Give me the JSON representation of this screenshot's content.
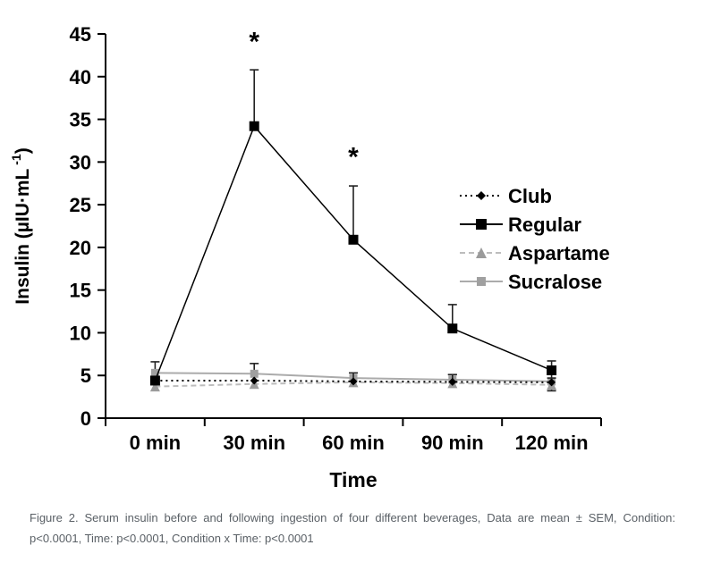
{
  "figure": {
    "caption": {
      "line1": "Figure 2. Serum insulin before and following ingestion of four different beverages, Data are mean ± SEM, Condition:",
      "line2": "p<0.0001, Time: p<0.0001, Condition x Time: p<0.0001",
      "full": "Figure 2. Serum insulin before and following ingestion of four different beverages, Data are mean ± SEM, Condition: p<0.0001, Time: p<0.0001, Condition x Time: p<0.0001",
      "color": "#5a6066"
    }
  },
  "chart_data": {
    "type": "line",
    "title": "",
    "xlabel": "Time",
    "ylabel": "Insulin (µIU·mL⁻¹)",
    "categories": [
      "0 min",
      "30 min",
      "60 min",
      "90 min",
      "120 min"
    ],
    "ylim": [
      0,
      45
    ],
    "ytick_step": 5,
    "grid": false,
    "legend_position": "right",
    "error_bar_color": "#222222",
    "axis_color": "#000000",
    "series": [
      {
        "name": "Club",
        "color": "#000000",
        "line_color": "#000000",
        "marker": "diamond",
        "line": "dotted",
        "values": [
          4.4,
          4.4,
          4.3,
          4.25,
          4.2
        ],
        "err_up": [
          0,
          0,
          0,
          0,
          0
        ],
        "err_down": [
          0,
          0,
          0,
          0,
          0
        ]
      },
      {
        "name": "Regular",
        "color": "#000000",
        "line_color": "#000000",
        "marker": "square",
        "line": "solid",
        "values": [
          4.4,
          34.2,
          20.9,
          10.5,
          5.6
        ],
        "err_up": [
          0,
          6.6,
          6.3,
          2.8,
          1.1
        ],
        "err_down": [
          0,
          0,
          0,
          0,
          0.9
        ]
      },
      {
        "name": "Aspartame",
        "color": "#9b9b9b",
        "line_color": "#bdbdbd",
        "marker": "triangle",
        "line": "dashed",
        "values": [
          3.7,
          4.0,
          4.2,
          4.1,
          3.9
        ],
        "err_up": [
          0,
          0,
          1.1,
          1.0,
          0
        ],
        "err_down": [
          0,
          0,
          0,
          0,
          0.7
        ]
      },
      {
        "name": "Sucralose",
        "color": "#a0a0a0",
        "line_color": "#ababab",
        "marker": "square",
        "line": "solid",
        "values": [
          5.3,
          5.2,
          4.7,
          4.5,
          4.3
        ],
        "err_up": [
          1.3,
          1.2,
          0,
          0.6,
          0
        ],
        "err_down": [
          0,
          0,
          0,
          0,
          0
        ]
      }
    ],
    "annotations": [
      {
        "text": "*",
        "x_index": 1,
        "y": 44.4
      },
      {
        "text": "*",
        "x_index": 2,
        "y": 30.9
      }
    ]
  }
}
